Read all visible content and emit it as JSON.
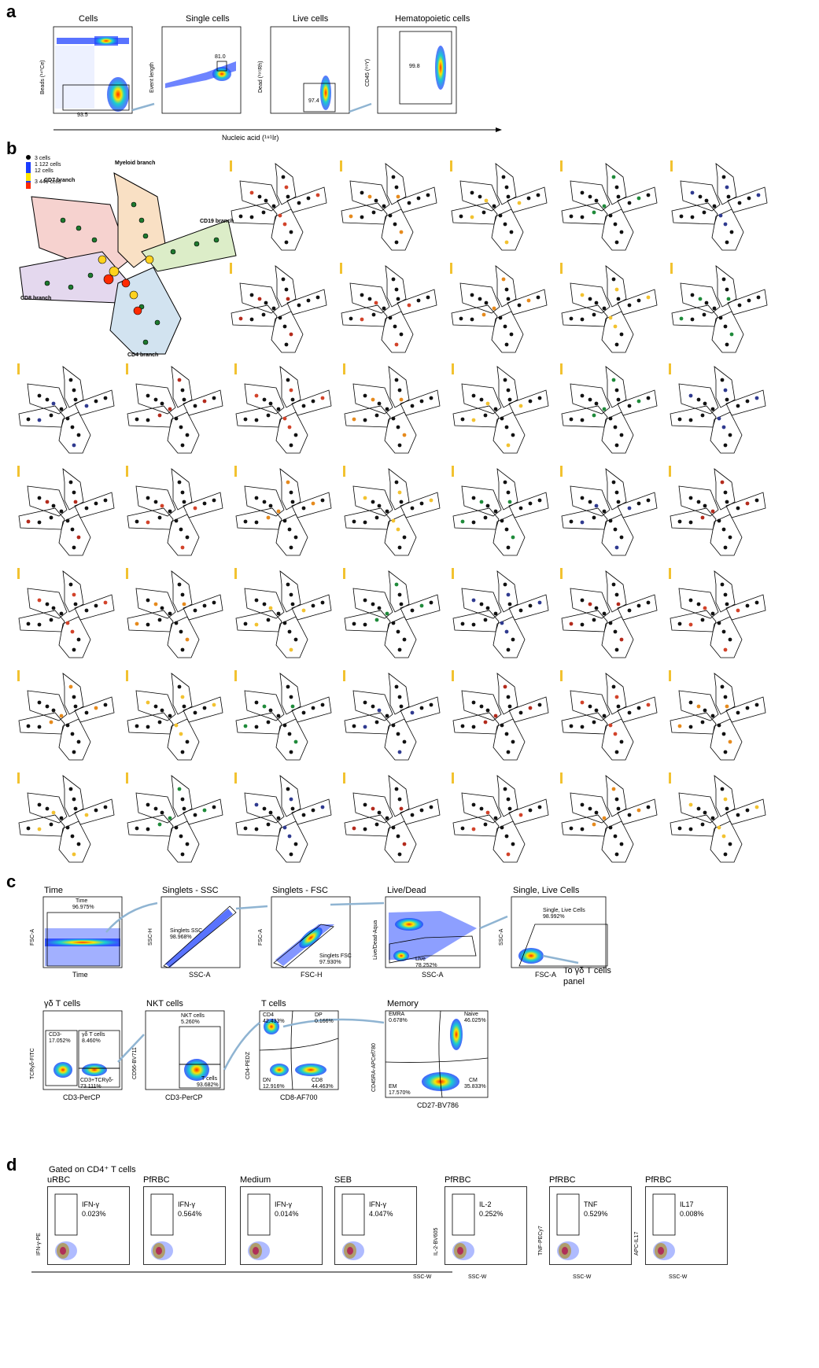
{
  "panels": {
    "a": "a",
    "b": "b",
    "c": "c",
    "d": "d"
  },
  "colors": {
    "density_low": "#1a3cff",
    "density_mid": "#18d0d0",
    "density_high": "#ff2a00",
    "arrow": "#8fb4d2",
    "branch_cd7": "#f6d2cf",
    "branch_myeloid": "#f9e0c4",
    "branch_cd19": "#dcedc8",
    "branch_cd8": "#e4d8ee",
    "branch_cd4": "#d2e3f0"
  },
  "panel_a": {
    "plots": [
      {
        "title": "Cells",
        "ylabel": "Beads (¹⁴⁰Ce)",
        "gate_value": "93.5"
      },
      {
        "title": "Single cells",
        "ylabel": "Event length",
        "gate_value": "81.0"
      },
      {
        "title": "Live cells",
        "ylabel": "Dead (¹⁹⁵Rh)",
        "gate_value": "97.4"
      },
      {
        "title": "Hematopoietic cells",
        "ylabel": "CD45 (⁸⁹Y)",
        "gate_value": "99.8"
      }
    ],
    "xlabel": "Nucleic acid (¹⁹¹Ir)"
  },
  "panel_b": {
    "branches": {
      "cd7": "CD7 branch",
      "myeloid": "Myeloid branch",
      "cd19": "CD19 branch",
      "cd8": "CD8 branch",
      "cd4": "CD4 branch"
    },
    "size_legend": [
      "3 cells",
      "1 122 cells",
      "12 cells",
      "3 446 cells"
    ]
  },
  "panel_c": {
    "row1": [
      {
        "title": "Time",
        "gate_label": "Time",
        "gate_value": "96.975%",
        "xlabel": "Time",
        "ylabel": "FSC-A"
      },
      {
        "title": "Singlets - SSC",
        "gate_label": "Singlets SSC",
        "gate_value": "98.968%",
        "xlabel": "SSC-A",
        "ylabel": "SSC-H"
      },
      {
        "title": "Singlets - FSC",
        "gate_label": "Singlets FSC",
        "gate_value": "97.930%",
        "xlabel": "FSC-H",
        "ylabel": "FSC-A"
      },
      {
        "title": "Live/Dead",
        "gate_label": "Live",
        "gate_value": "78.252%",
        "xlabel": "SSC-A",
        "ylabel": "Live/Dead-Aqua"
      },
      {
        "title": "Single, Live Cells",
        "gate_label": "Single, Live Cells",
        "gate_value": "98.992%",
        "xlabel": "FSC-A",
        "ylabel": "SSC-A"
      }
    ],
    "to_gd": "To γδ T cells",
    "panel_word": "panel",
    "row2": [
      {
        "title": "γδ T cells",
        "xlabel": "CD3-PerCP",
        "ylabel": "TCRγδ-FITC",
        "q1": "CD3-",
        "q1v": "17.052%",
        "q2": "γδ T cells",
        "q2v": "8.460%",
        "q3": "CD3+TCRγδ-",
        "q3v": "73.111%"
      },
      {
        "title": "NKT cells",
        "xlabel": "CD3-PerCP",
        "ylabel": "CD56-BV711",
        "q1": "NKT cells",
        "q1v": "5.260%",
        "q2": "T cells",
        "q2v": "93.682%"
      },
      {
        "title": "T cells",
        "xlabel": "CD8-AF700",
        "ylabel": "CD4-PEDZ",
        "cd4": "CD4",
        "cd4v": "42.433%",
        "dp": "DP",
        "dpv": "0.166%",
        "dn": "DN",
        "dnv": "12.916%",
        "cd8": "CD8",
        "cd8v": "44.463%"
      },
      {
        "title": "Memory",
        "xlabel": "CD27-BV786",
        "ylabel": "CD45RA-APCef780",
        "emra": "EMRA",
        "emrav": "0.678%",
        "naive": "Naive",
        "naivev": "46.025%",
        "em": "EM",
        "emv": "17.570%",
        "cm": "CM",
        "cmv": "35.833%"
      }
    ]
  },
  "panel_d": {
    "header": "Gated on CD4⁺ T cells",
    "plots": [
      {
        "title": "uRBC",
        "cyto": "IFN-γ",
        "value": "0.023%",
        "ylabel": "IFN-γ-PE"
      },
      {
        "title": "PfRBC",
        "cyto": "IFN-γ",
        "value": "0.564%"
      },
      {
        "title": "Medium",
        "cyto": "IFN-γ",
        "value": "0.014%"
      },
      {
        "title": "SEB",
        "cyto": "IFN-γ",
        "value": "4.047%"
      },
      {
        "title": "PfRBC",
        "cyto": "IL-2",
        "value": "0.252%",
        "ylabel": "IL-2-BV605"
      },
      {
        "title": "PfRBC",
        "cyto": "TNF",
        "value": "0.529%",
        "ylabel": "TNF-PECy7"
      },
      {
        "title": "PfRBC",
        "cyto": "IL17",
        "value": "0.008%",
        "ylabel": "APC-IL17"
      }
    ],
    "xlabel": "SSC-W"
  }
}
